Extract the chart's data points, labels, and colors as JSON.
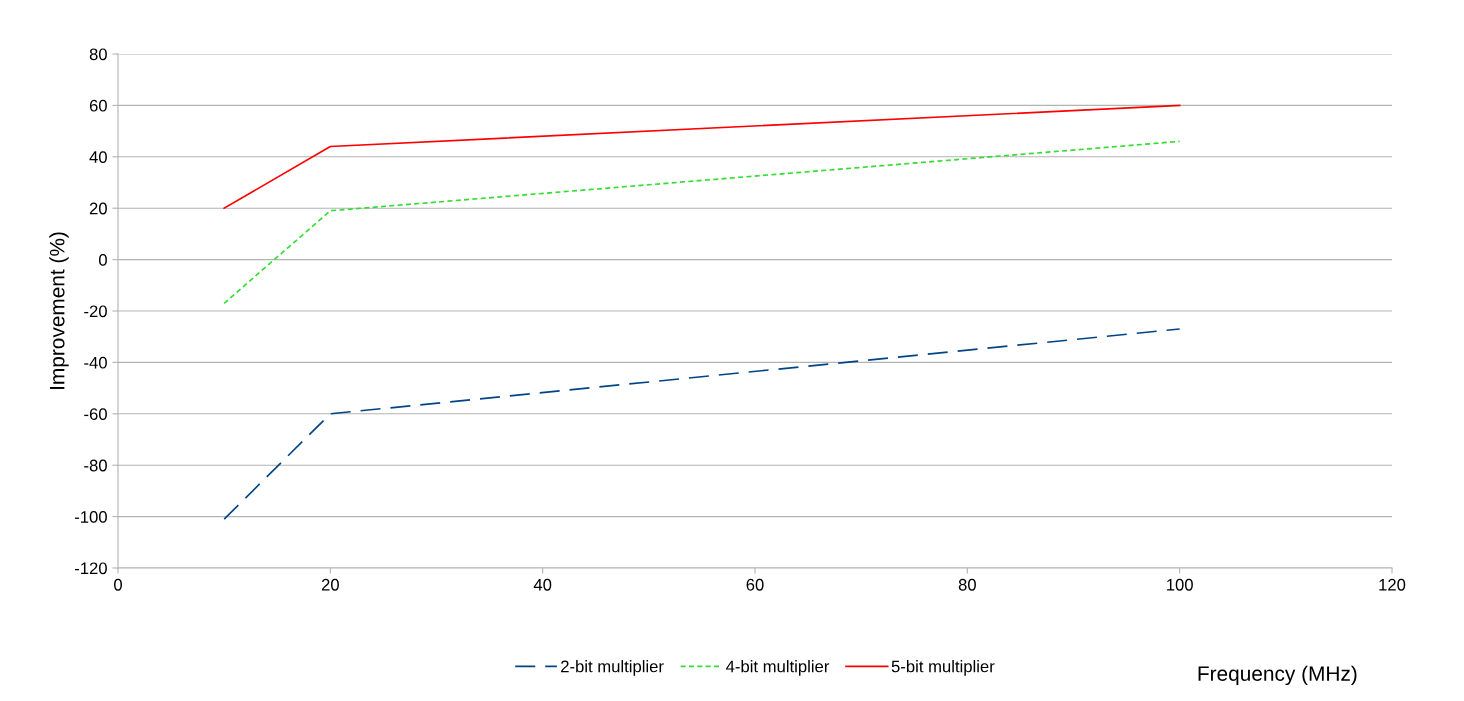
{
  "chart_data": {
    "type": "line",
    "xlabel": "Frequency (MHz)",
    "ylabel": "Improvement (%)",
    "x": [
      10,
      20,
      100
    ],
    "series": [
      {
        "name": "2-bit multiplier",
        "color": "#004586",
        "values": [
          -101,
          -60,
          -27
        ],
        "line_style": "dashed"
      },
      {
        "name": "4-bit multiplier",
        "color": "#33dd33",
        "values": [
          -17,
          19,
          46
        ],
        "line_style": "dotted"
      },
      {
        "name": "5-bit multiplier",
        "color": "#ff0000",
        "values": [
          20,
          44,
          60
        ],
        "line_style": "solid"
      }
    ],
    "xlim": [
      0,
      120
    ],
    "xticks": [
      0,
      20,
      40,
      60,
      80,
      100,
      120
    ],
    "ylim": [
      -120,
      80
    ],
    "yticks": [
      -120,
      -100,
      -80,
      -60,
      -40,
      -20,
      0,
      20,
      40,
      60,
      80
    ],
    "grid": "y",
    "legend": "bottom",
    "marker": "none"
  }
}
